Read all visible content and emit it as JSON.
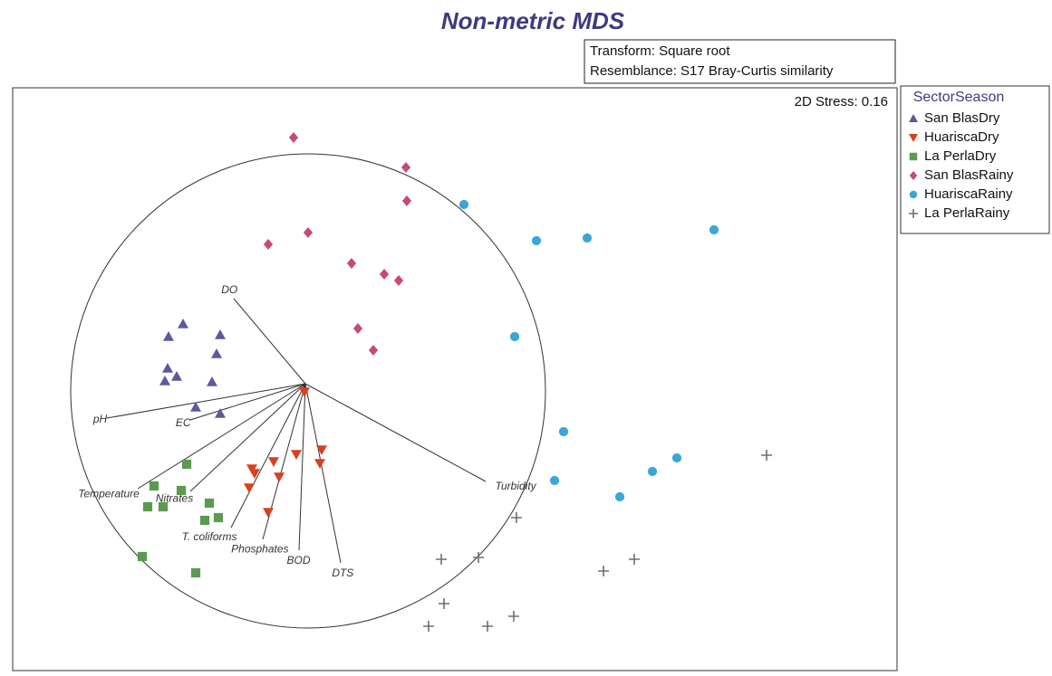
{
  "chart_data": {
    "type": "scatter",
    "title": "Non-metric MDS",
    "annotations": [
      "Transform: Square root",
      "Resemblance: S17 Bray-Curtis similarity"
    ],
    "stress": "2D Stress: 0.16",
    "legend_title": "SectorSeason",
    "xlim": [
      14,
      990
    ],
    "ylim": [
      0,
      645
    ],
    "circle": {
      "x": 340,
      "y": 310,
      "r": 262
    },
    "vector_origin": {
      "x": 337,
      "y": 318
    },
    "vectors": [
      {
        "label": "DO",
        "x": 258,
        "y": 412
      },
      {
        "label": "pH",
        "x": 118,
        "y": 280
      },
      {
        "label": "EC",
        "x": 210,
        "y": 278
      },
      {
        "label": "Temperature",
        "x": 152,
        "y": 202
      },
      {
        "label": "Nitrates",
        "x": 210,
        "y": 199
      },
      {
        "label": "T. coliforms",
        "x": 255,
        "y": 159
      },
      {
        "label": "Phosphates",
        "x": 290,
        "y": 146
      },
      {
        "label": "BOD",
        "x": 330,
        "y": 134
      },
      {
        "label": "DTS",
        "x": 376,
        "y": 120
      },
      {
        "label": "Turbidity",
        "x": 536,
        "y": 210
      }
    ],
    "series": [
      {
        "name": "San BlasDry",
        "marker": "triangle-up",
        "color": "#5b5a9c",
        "x": [
          202,
          186,
          243,
          239,
          185,
          195,
          182,
          234,
          216,
          243
        ],
        "y": [
          384,
          370,
          372,
          351,
          335,
          326,
          321,
          320,
          292,
          285
        ]
      },
      {
        "name": "HuariscaDry",
        "marker": "triangle-down",
        "color": "#d9401e",
        "x": [
          336,
          355,
          327,
          302,
          278,
          353,
          308,
          281,
          275,
          296
        ],
        "y": [
          309,
          245,
          240,
          232,
          224,
          230,
          215,
          219,
          203,
          176
        ]
      },
      {
        "name": "La PerlaDry",
        "marker": "square",
        "color": "#5c9a52",
        "x": [
          206,
          170,
          200,
          231,
          163,
          180,
          241,
          226,
          157,
          216
        ],
        "y": [
          229,
          205,
          200,
          186,
          182,
          182,
          170,
          167,
          127,
          109
        ]
      },
      {
        "name": "San BlasRainy",
        "marker": "diamond",
        "color": "#c84a72",
        "x": [
          324,
          448,
          449,
          296,
          340,
          388,
          424,
          440,
          395,
          412
        ],
        "y": [
          590,
          557,
          520,
          472,
          485,
          451,
          439,
          432,
          379,
          355
        ]
      },
      {
        "name": "HuariscaRainy",
        "marker": "circle",
        "color": "#3ba6d6",
        "x": [
          512,
          592,
          648,
          788,
          568,
          622,
          747,
          720,
          612,
          684
        ],
        "y": [
          516,
          476,
          479,
          488,
          370,
          265,
          236,
          221,
          211,
          193
        ]
      },
      {
        "name": "La PerlaRainy",
        "marker": "plus",
        "color": "#7a6a6a",
        "x": [
          846,
          570,
          487,
          528,
          666,
          700,
          490,
          473,
          538,
          567
        ],
        "y": [
          239,
          170,
          124,
          126,
          111,
          124,
          75,
          50,
          50,
          61
        ]
      }
    ]
  }
}
